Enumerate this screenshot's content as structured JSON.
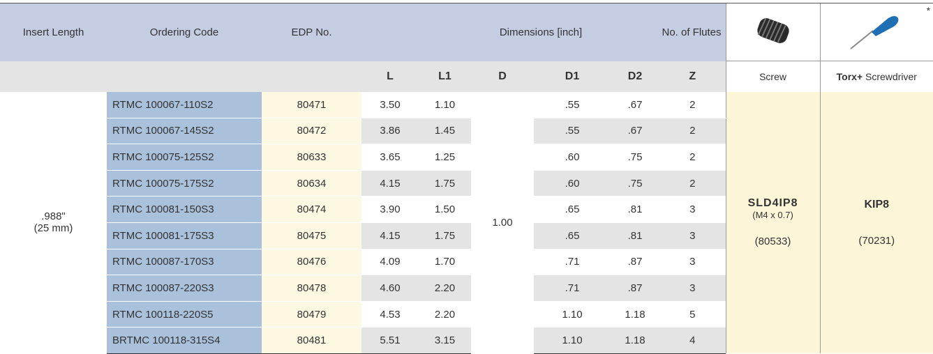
{
  "header": {
    "insert_length": "Insert Length",
    "ordering_code": "Ordering Code",
    "edp_no": "EDP No.",
    "dimensions": "Dimensions [inch]",
    "flutes": "No. of Flutes",
    "sub_columns": [
      "L",
      "L1",
      "D",
      "D1",
      "D2",
      "Z"
    ],
    "screw_label": "Screw",
    "screwdriver_brand": "Torx+",
    "screwdriver_label": "Screwdriver",
    "asterisk": "*"
  },
  "table": {
    "insert_length": ".988\"",
    "insert_length_mm": "(25 mm)",
    "d": "1.00",
    "rows": [
      [
        "RTMC 100067-110S2",
        "80471",
        "3.50",
        "1.10",
        ".55",
        ".67",
        "2"
      ],
      [
        "RTMC 100067-145S2",
        "80472",
        "3.86",
        "1.45",
        ".55",
        ".67",
        "2"
      ],
      [
        "RTMC 100075-125S2",
        "80633",
        "3.65",
        "1.25",
        ".60",
        ".75",
        "2"
      ],
      [
        "RTMC 100075-175S2",
        "80634",
        "4.15",
        "1.75",
        ".60",
        ".75",
        "2"
      ],
      [
        "RTMC 100081-150S3",
        "80474",
        "3.90",
        "1.50",
        ".65",
        ".81",
        "3"
      ],
      [
        "RTMC 100081-175S3",
        "80475",
        "4.15",
        "1.75",
        ".65",
        ".81",
        "3"
      ],
      [
        "RTMC 100087-170S3",
        "80476",
        "4.09",
        "1.70",
        ".71",
        ".87",
        "3"
      ],
      [
        "RTMC 100087-220S3",
        "80478",
        "4.60",
        "2.20",
        ".71",
        ".87",
        "3"
      ],
      [
        "RTMC 100118-220S5",
        "80479",
        "4.53",
        "2.20",
        "1.10",
        "1.18",
        "5"
      ],
      [
        "BRTMC 100118-315S4",
        "80481",
        "5.51",
        "3.15",
        "1.10",
        "1.18",
        "4"
      ]
    ],
    "screw": {
      "code": "SLD4IP8",
      "thread": "(M4 x 0.7)",
      "edp": "(80533)"
    },
    "screwdriver": {
      "code": "KIP8",
      "edp": "(70231)"
    }
  }
}
